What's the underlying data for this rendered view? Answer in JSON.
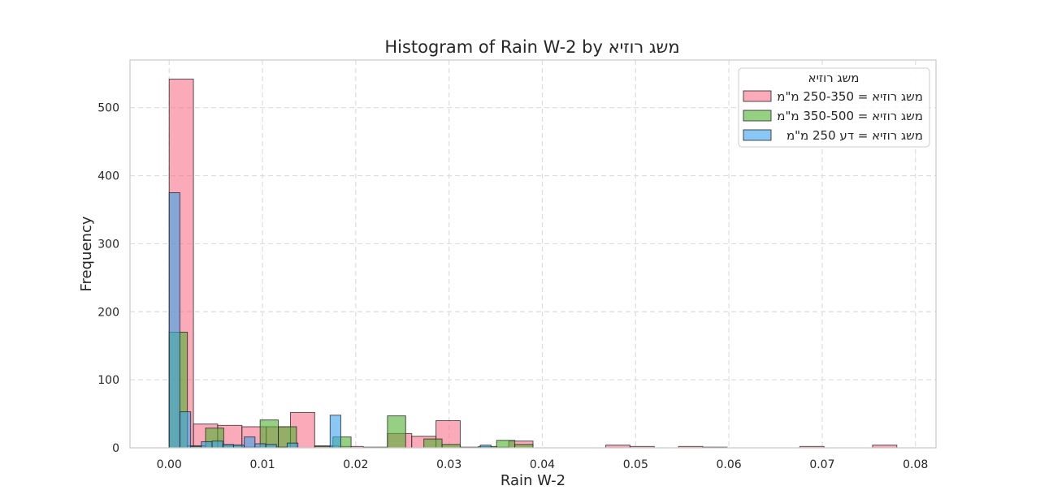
{
  "chart_data": {
    "type": "bar",
    "subtype": "histogram",
    "title": "Histogram of Rain W-2 by משג רוזיא",
    "xlabel": "Rain W-2",
    "ylabel": "Frequency",
    "xlim": [
      -0.0042,
      0.0822
    ],
    "ylim": [
      0,
      570
    ],
    "xticks": [
      0.0,
      0.01,
      0.02,
      0.03,
      0.04,
      0.05,
      0.06,
      0.07,
      0.08
    ],
    "xtick_labels": [
      "0.00",
      "0.01",
      "0.02",
      "0.03",
      "0.04",
      "0.05",
      "0.06",
      "0.07",
      "0.08"
    ],
    "yticks": [
      0,
      100,
      200,
      300,
      400,
      500
    ],
    "ytick_labels": [
      "0",
      "100",
      "200",
      "300",
      "400",
      "500"
    ],
    "grid": true,
    "grid_style": "dashed",
    "legend": {
      "title": "משג רוזיא",
      "placement": "top-right"
    },
    "series": [
      {
        "name": "משג רוזיא = 250-350 מ\"מ",
        "color": "#f77189",
        "bin_width": 0.0026,
        "bins": [
          {
            "x": 0.0,
            "count": 542
          },
          {
            "x": 0.0026,
            "count": 35
          },
          {
            "x": 0.0052,
            "count": 33
          },
          {
            "x": 0.0078,
            "count": 31
          },
          {
            "x": 0.0104,
            "count": 31
          },
          {
            "x": 0.013,
            "count": 52
          },
          {
            "x": 0.0156,
            "count": 3
          },
          {
            "x": 0.0182,
            "count": 2
          },
          {
            "x": 0.0208,
            "count": 1
          },
          {
            "x": 0.0234,
            "count": 21
          },
          {
            "x": 0.026,
            "count": 17
          },
          {
            "x": 0.0286,
            "count": 40
          },
          {
            "x": 0.0312,
            "count": 1
          },
          {
            "x": 0.0338,
            "count": 1
          },
          {
            "x": 0.0364,
            "count": 10
          },
          {
            "x": 0.039,
            "count": 0
          },
          {
            "x": 0.0416,
            "count": 0
          },
          {
            "x": 0.0442,
            "count": 0
          },
          {
            "x": 0.0468,
            "count": 4
          },
          {
            "x": 0.0494,
            "count": 2
          },
          {
            "x": 0.052,
            "count": 0
          },
          {
            "x": 0.0546,
            "count": 2
          },
          {
            "x": 0.0572,
            "count": 1
          },
          {
            "x": 0.0598,
            "count": 0
          },
          {
            "x": 0.0624,
            "count": 0
          },
          {
            "x": 0.065,
            "count": 0
          },
          {
            "x": 0.0676,
            "count": 2
          },
          {
            "x": 0.0702,
            "count": 0
          },
          {
            "x": 0.0728,
            "count": 0
          },
          {
            "x": 0.0754,
            "count": 4
          }
        ]
      },
      {
        "name": "משג רוזיא = 350-500 מ\"מ",
        "color": "#50b131",
        "bin_width": 0.00195,
        "bins": [
          {
            "x": 0.0,
            "count": 170
          },
          {
            "x": 0.00195,
            "count": 3
          },
          {
            "x": 0.0039,
            "count": 29
          },
          {
            "x": 0.00585,
            "count": 4
          },
          {
            "x": 0.0078,
            "count": 1
          },
          {
            "x": 0.00975,
            "count": 41
          },
          {
            "x": 0.0117,
            "count": 31
          },
          {
            "x": 0.01365,
            "count": 0
          },
          {
            "x": 0.0156,
            "count": 2
          },
          {
            "x": 0.01755,
            "count": 16
          },
          {
            "x": 0.0195,
            "count": 0
          },
          {
            "x": 0.02145,
            "count": 0
          },
          {
            "x": 0.0234,
            "count": 47
          },
          {
            "x": 0.02535,
            "count": 0
          },
          {
            "x": 0.0273,
            "count": 13
          },
          {
            "x": 0.02925,
            "count": 5
          },
          {
            "x": 0.0312,
            "count": 0
          },
          {
            "x": 0.03315,
            "count": 2
          },
          {
            "x": 0.0351,
            "count": 11
          },
          {
            "x": 0.03705,
            "count": 5
          }
        ]
      },
      {
        "name": "משג רוזיא = דע 250 מ\"מ",
        "color": "#3ba3ec",
        "bin_width": 0.00115,
        "bins": [
          {
            "x": 0.0,
            "count": 375
          },
          {
            "x": 0.00115,
            "count": 53
          },
          {
            "x": 0.0023,
            "count": 2
          },
          {
            "x": 0.00345,
            "count": 9
          },
          {
            "x": 0.0046,
            "count": 10
          },
          {
            "x": 0.00575,
            "count": 5
          },
          {
            "x": 0.0069,
            "count": 4
          },
          {
            "x": 0.00805,
            "count": 16
          },
          {
            "x": 0.0092,
            "count": 6
          },
          {
            "x": 0.01035,
            "count": 5
          },
          {
            "x": 0.0115,
            "count": 1
          },
          {
            "x": 0.01265,
            "count": 7
          },
          {
            "x": 0.0138,
            "count": 0
          },
          {
            "x": 0.01495,
            "count": 0
          },
          {
            "x": 0.0161,
            "count": 0
          },
          {
            "x": 0.01725,
            "count": 48
          },
          {
            "x": 0.0184,
            "count": 0
          },
          {
            "x": 0.01955,
            "count": 0
          },
          {
            "x": 0.0207,
            "count": 0
          },
          {
            "x": 0.02185,
            "count": 0
          },
          {
            "x": 0.023,
            "count": 0
          },
          {
            "x": 0.02415,
            "count": 0
          },
          {
            "x": 0.0253,
            "count": 0
          },
          {
            "x": 0.02645,
            "count": 0
          },
          {
            "x": 0.0276,
            "count": 0
          },
          {
            "x": 0.02875,
            "count": 0
          },
          {
            "x": 0.0299,
            "count": 0
          },
          {
            "x": 0.03105,
            "count": 0
          },
          {
            "x": 0.0322,
            "count": 0
          },
          {
            "x": 0.03335,
            "count": 4
          }
        ]
      }
    ]
  }
}
